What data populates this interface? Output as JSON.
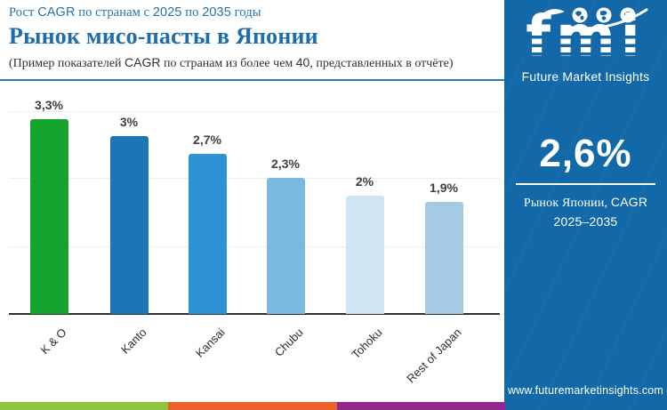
{
  "header": {
    "eyebrow_segments": [
      {
        "t": "Рост ",
        "f": "serif"
      },
      {
        "t": "CAGR",
        "f": "sans"
      },
      {
        "t": " по странам с ",
        "f": "serif"
      },
      {
        "t": "2025",
        "f": "sans"
      },
      {
        "t": " по ",
        "f": "serif"
      },
      {
        "t": "2035",
        "f": "sans"
      },
      {
        "t": " годы",
        "f": "serif"
      }
    ],
    "title": "Рынок мисо-пасты в Японии",
    "subtitle_segments": [
      {
        "t": "(Пример показателей ",
        "f": "serif"
      },
      {
        "t": "CAGR",
        "f": "sans"
      },
      {
        "t": " по странам из более чем ",
        "f": "serif"
      },
      {
        "t": "40",
        "f": "sans"
      },
      {
        "t": ", представленных в отчёте)",
        "f": "serif"
      }
    ]
  },
  "chart_data": {
    "type": "bar",
    "title": "Рынок мисо-пасты в Японии",
    "subtitle": "Рост CAGR по странам с 2025 по 2035 годы",
    "categories": [
      "K & O",
      "Kanto",
      "Kansai",
      "Chubu",
      "Tohoku",
      "Rest of Japan"
    ],
    "values": [
      3.3,
      3.0,
      2.7,
      2.3,
      2.0,
      1.9
    ],
    "value_labels": [
      "3,3%",
      "3%",
      "2,7%",
      "2,3%",
      "2%",
      "1,9%"
    ],
    "bar_colors": [
      "#14a32c",
      "#1c75b5",
      "#2e93d5",
      "#7cb9e2",
      "#cfe5f4",
      "#a6c9e4"
    ],
    "xlabel": "",
    "ylabel": "",
    "ylim": [
      0,
      3.6
    ],
    "grid": true,
    "legend": "none"
  },
  "panel": {
    "bg_color": "#1369a8",
    "logo": {
      "text": "fmi",
      "tagline": "Future Market Insights",
      "globe_icons": [
        "globe-americas-icon",
        "globe-europe-icon",
        "globe-asia-icon"
      ]
    },
    "stat_value": "2,6%",
    "stat_caption_segments": [
      {
        "t": "Рынок Японии, ",
        "f": "serif"
      },
      {
        "t": "CAGR",
        "f": "sans"
      }
    ],
    "stat_caption_line2": "2025–2035",
    "website": "www.futuremarketinsights.com"
  },
  "footer_strip": {
    "colors": [
      "#8cc63f",
      "#e8622a",
      "#92278f"
    ]
  }
}
